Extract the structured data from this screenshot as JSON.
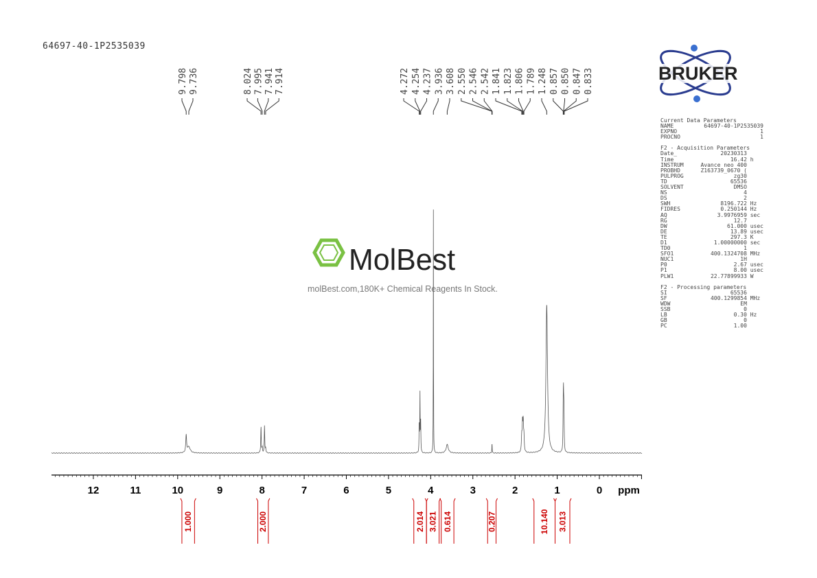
{
  "sample_name": "64697-40-1P2535039",
  "logo": {
    "text": "BRUKER",
    "colors": {
      "orbit": "#2a3c8f",
      "dot": "#3a6fd0"
    }
  },
  "watermark": {
    "brand": "MolBest",
    "tagline": "molBest.com,180K+ Chemical Reagents In Stock.",
    "color": "#7ac143"
  },
  "parameters": {
    "current": {
      "title": "Current Data Parameters",
      "rows": [
        [
          "NAME",
          "64697-40-1P2535039"
        ],
        [
          "EXPNO",
          "1"
        ],
        [
          "PROCNO",
          "1"
        ]
      ]
    },
    "acquisition": {
      "title": "F2 - Acquisition Parameters",
      "rows": [
        [
          "Date_",
          "20230313",
          ""
        ],
        [
          "Time",
          "16.42",
          "h"
        ],
        [
          "INSTRUM",
          "Avance neo 400",
          ""
        ],
        [
          "PROBHD",
          "Z163739_0670 (",
          ""
        ],
        [
          "PULPROG",
          "zg30",
          ""
        ],
        [
          "TD",
          "65536",
          ""
        ],
        [
          "SOLVENT",
          "DMSO",
          ""
        ],
        [
          "NS",
          "4",
          ""
        ],
        [
          "DS",
          "2",
          ""
        ],
        [
          "SWH",
          "8196.722",
          "Hz"
        ],
        [
          "FIDRES",
          "0.250144",
          "Hz"
        ],
        [
          "AQ",
          "3.9976959",
          "sec"
        ],
        [
          "RG",
          "12.7",
          ""
        ],
        [
          "DW",
          "61.000",
          "usec"
        ],
        [
          "DE",
          "13.89",
          "usec"
        ],
        [
          "TE",
          "297.3",
          "K"
        ],
        [
          "D1",
          "1.00000000",
          "sec"
        ],
        [
          "TD0",
          "1",
          ""
        ],
        [
          "SFO1",
          "400.1324708",
          "MHz"
        ],
        [
          "NUC1",
          "1H",
          ""
        ],
        [
          "P0",
          "2.67",
          "usec"
        ],
        [
          "P1",
          "8.00",
          "usec"
        ],
        [
          "PLW1",
          "22.77899933",
          "W"
        ]
      ]
    },
    "processing": {
      "title": "F2 - Processing parameters",
      "rows": [
        [
          "SI",
          "65536",
          ""
        ],
        [
          "SF",
          "400.1299854",
          "MHz"
        ],
        [
          "WDW",
          "EM",
          ""
        ],
        [
          "SSB",
          "0",
          ""
        ],
        [
          "LB",
          "0.30",
          "Hz"
        ],
        [
          "GB",
          "0",
          ""
        ],
        [
          "PC",
          "1.00",
          ""
        ]
      ]
    }
  },
  "chart_data": {
    "type": "line",
    "xlabel": "ppm",
    "xlim": [
      13,
      -1
    ],
    "x_reversed": true,
    "xticks": [
      12,
      11,
      10,
      9,
      8,
      7,
      6,
      5,
      4,
      3,
      2,
      1,
      0
    ],
    "grid": false,
    "line_color": "#555555",
    "integral_color": "#cc0000",
    "peak_label_groups": [
      [
        "9.798",
        "9.736"
      ],
      [
        "8.024",
        "7.995",
        "7.941",
        "7.914"
      ],
      [
        "4.272",
        "4.254",
        "4.237",
        "3.936",
        "3.608",
        "2.550",
        "2.546",
        "2.542",
        "1.841",
        "1.823",
        "1.806",
        "1.789",
        "1.248",
        "0.857",
        "0.850",
        "0.847",
        "0.833"
      ]
    ],
    "peaks": [
      {
        "ppm": 9.798,
        "intensity": 7,
        "width": 0.012
      },
      {
        "ppm": 9.736,
        "intensity": 2.5,
        "width": 0.04
      },
      {
        "ppm": 8.024,
        "intensity": 11,
        "width": 0.007
      },
      {
        "ppm": 7.995,
        "intensity": 2,
        "width": 0.007
      },
      {
        "ppm": 7.941,
        "intensity": 11,
        "width": 0.007
      },
      {
        "ppm": 7.914,
        "intensity": 2,
        "width": 0.007
      },
      {
        "ppm": 4.272,
        "intensity": 12,
        "width": 0.005
      },
      {
        "ppm": 4.254,
        "intensity": 24,
        "width": 0.005
      },
      {
        "ppm": 4.237,
        "intensity": 12,
        "width": 0.005
      },
      {
        "ppm": 3.936,
        "intensity": 100,
        "width": 0.003
      },
      {
        "ppm": 3.608,
        "intensity": 3.5,
        "width": 0.03
      },
      {
        "ppm": 2.546,
        "intensity": 4.5,
        "width": 0.004
      },
      {
        "ppm": 1.841,
        "intensity": 6,
        "width": 0.009
      },
      {
        "ppm": 1.823,
        "intensity": 11,
        "width": 0.009
      },
      {
        "ppm": 1.806,
        "intensity": 11,
        "width": 0.009
      },
      {
        "ppm": 1.789,
        "intensity": 6,
        "width": 0.009
      },
      {
        "ppm": 1.248,
        "intensity": 61,
        "width": 0.022
      },
      {
        "ppm": 0.857,
        "intensity": 15,
        "width": 0.006
      },
      {
        "ppm": 0.85,
        "intensity": 18,
        "width": 0.006
      },
      {
        "ppm": 0.84,
        "intensity": 16,
        "width": 0.006
      }
    ],
    "integrals": [
      {
        "from": 9.9,
        "to": 9.6,
        "value": "1.000"
      },
      {
        "from": 8.1,
        "to": 7.85,
        "value": "2.000"
      },
      {
        "from": 4.4,
        "to": 4.1,
        "value": "2.014"
      },
      {
        "from": 4.1,
        "to": 3.8,
        "value": "3.021"
      },
      {
        "from": 3.75,
        "to": 3.45,
        "value": "0.614"
      },
      {
        "from": 2.65,
        "to": 2.45,
        "value": "0.207"
      },
      {
        "from": 1.55,
        "to": 1.05,
        "value": "10.140"
      },
      {
        "from": 1.05,
        "to": 0.7,
        "value": "3.013"
      }
    ]
  }
}
